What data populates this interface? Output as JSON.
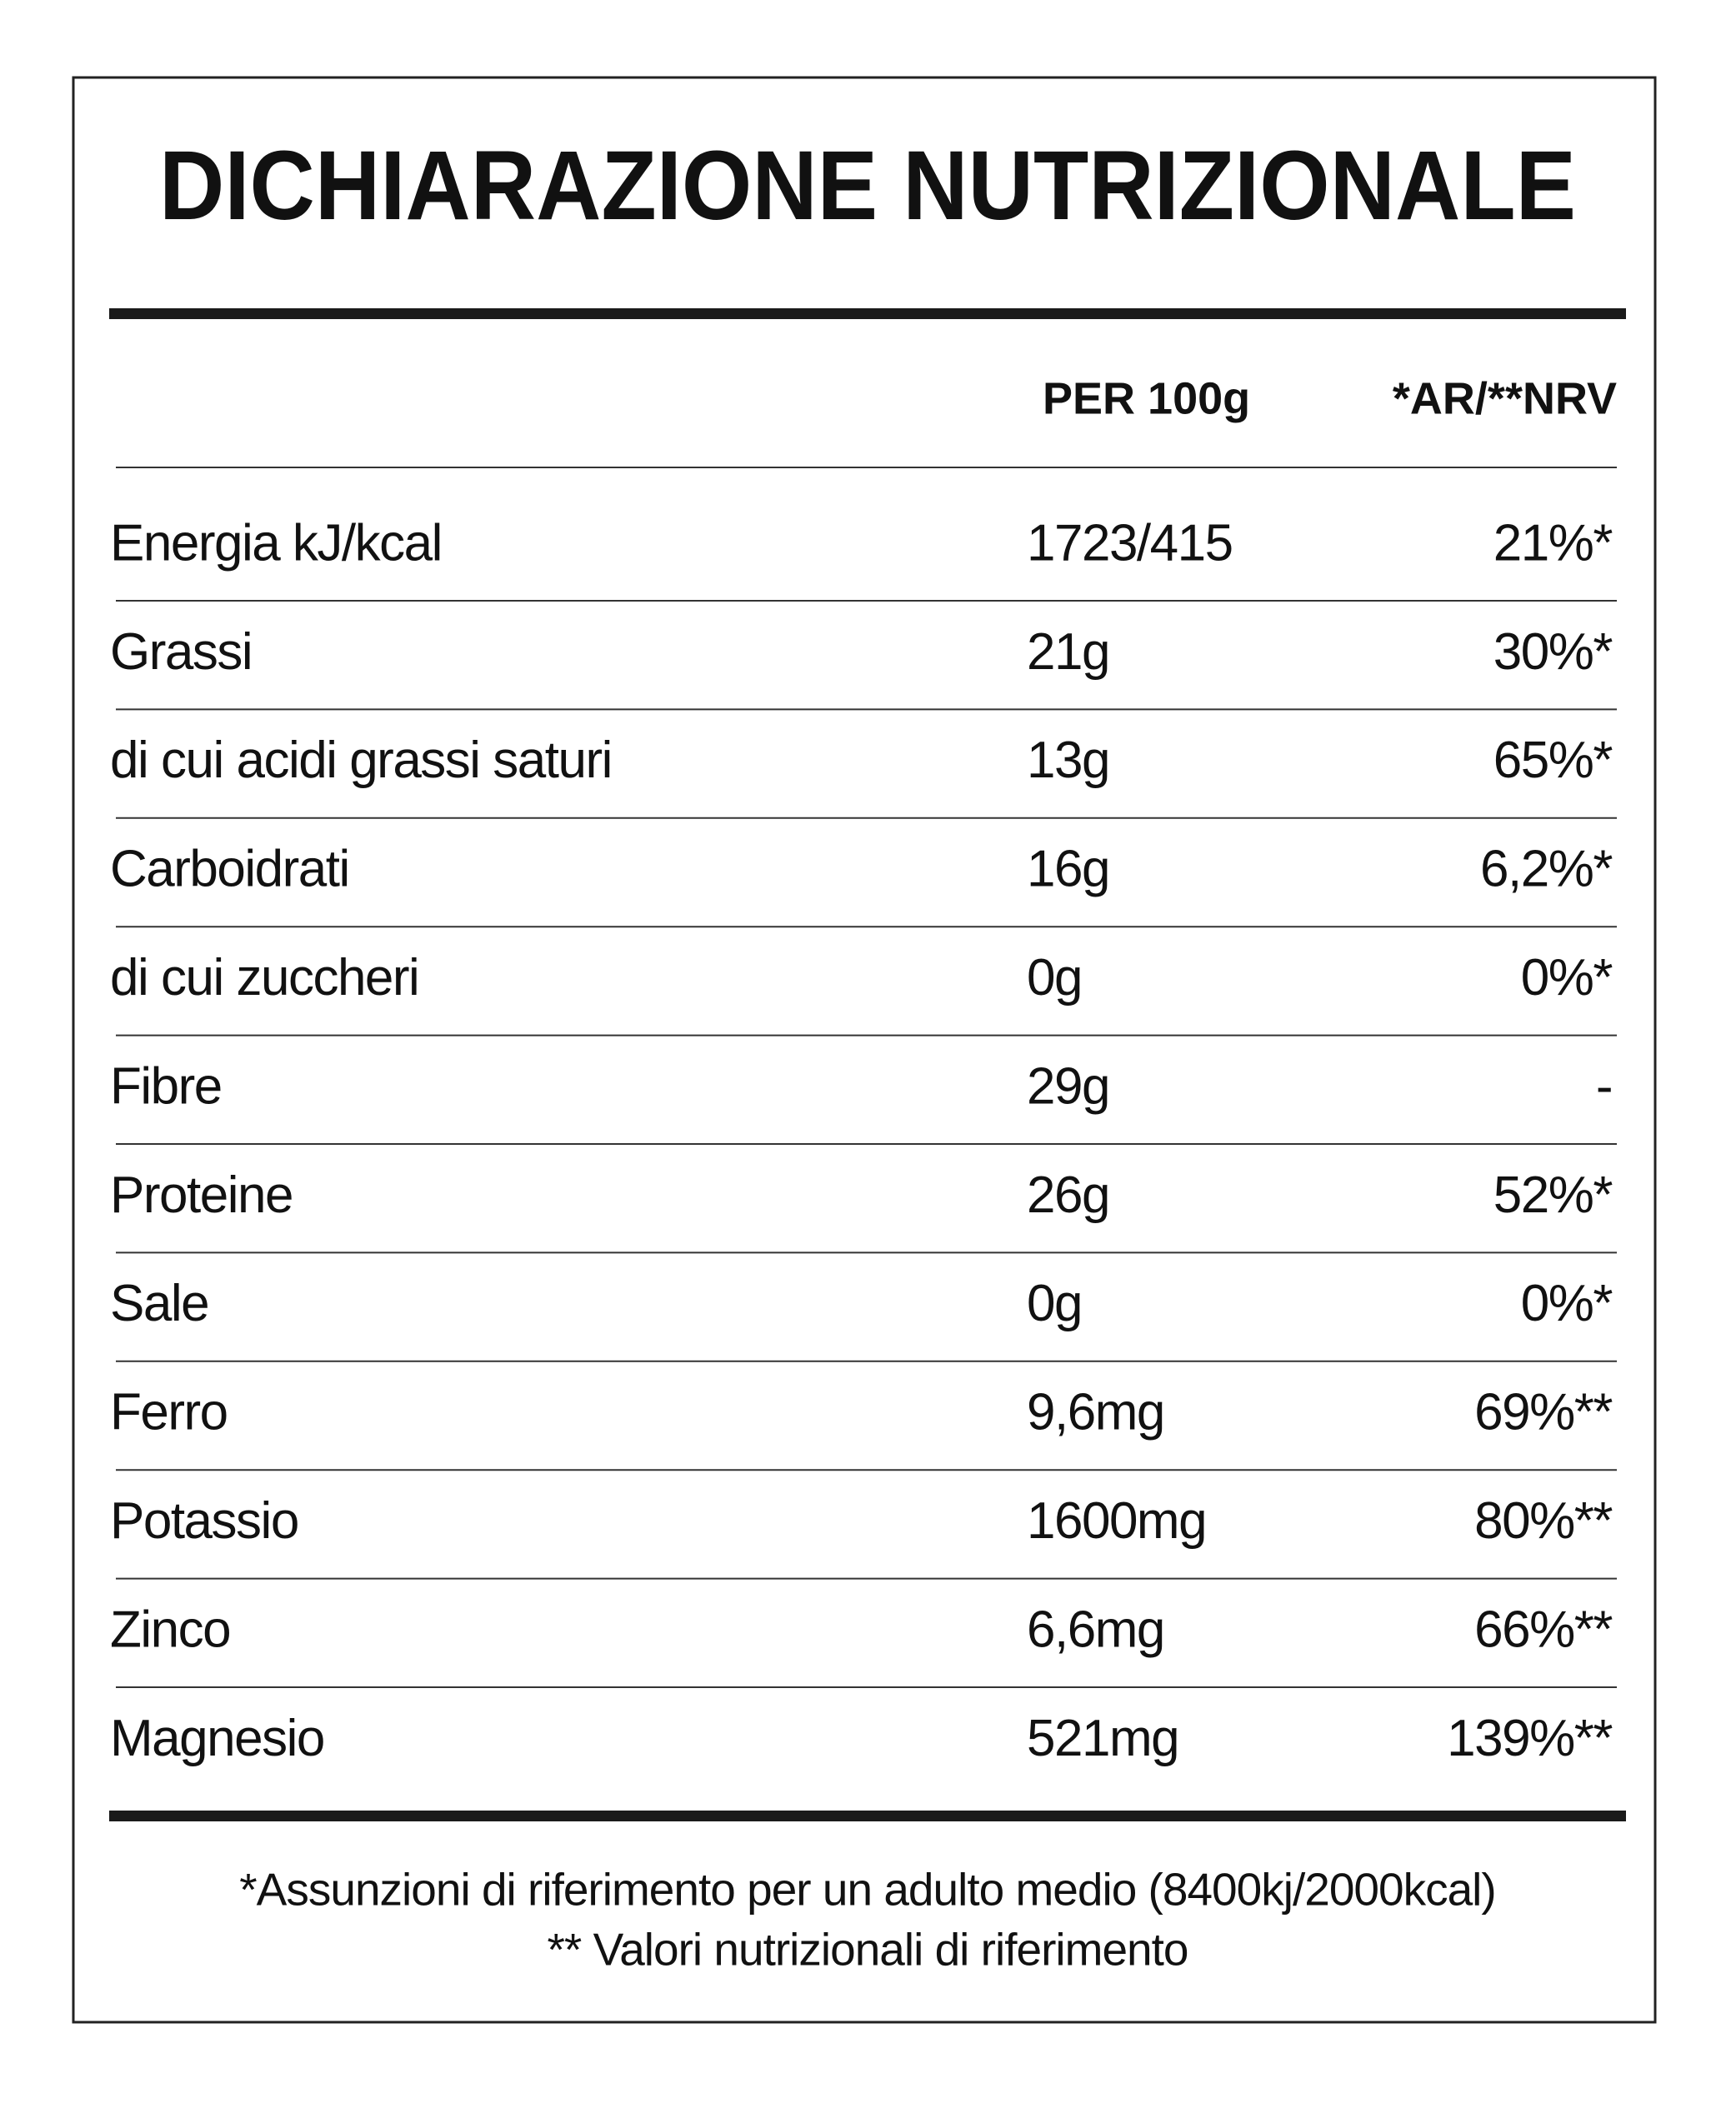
{
  "header": {
    "title": "DICHIARAZIONE NUTRIZIONALE"
  },
  "table": {
    "columns": [
      "PER 100g",
      "*AR/**NRV"
    ],
    "rows": [
      [
        "Energia kJ/kcal",
        "1723/415",
        "21%*"
      ],
      [
        "Grassi",
        "21g",
        "30%*"
      ],
      [
        "di cui acidi grassi saturi",
        "13g",
        "65%*"
      ],
      [
        "Carboidrati",
        "16g",
        "6,2%*"
      ],
      [
        "di cui zuccheri",
        "0g",
        "0%*"
      ],
      [
        "Fibre",
        "29g",
        "-"
      ],
      [
        "Proteine",
        "26g",
        "52%*"
      ],
      [
        "Sale",
        "0g",
        "0%*"
      ],
      [
        "Ferro",
        "9,6mg",
        "69%**"
      ],
      [
        "Potassio",
        "1600mg",
        "80%**"
      ],
      [
        "Zinco",
        "6,6mg",
        "66%**"
      ],
      [
        "Magnesio",
        "521mg",
        "139%**"
      ]
    ]
  },
  "footnotes": [
    "*Assunzioni di riferimento per un adulto medio (8400kj/2000kcal)",
    "** Valori nutrizionali di riferimento"
  ]
}
